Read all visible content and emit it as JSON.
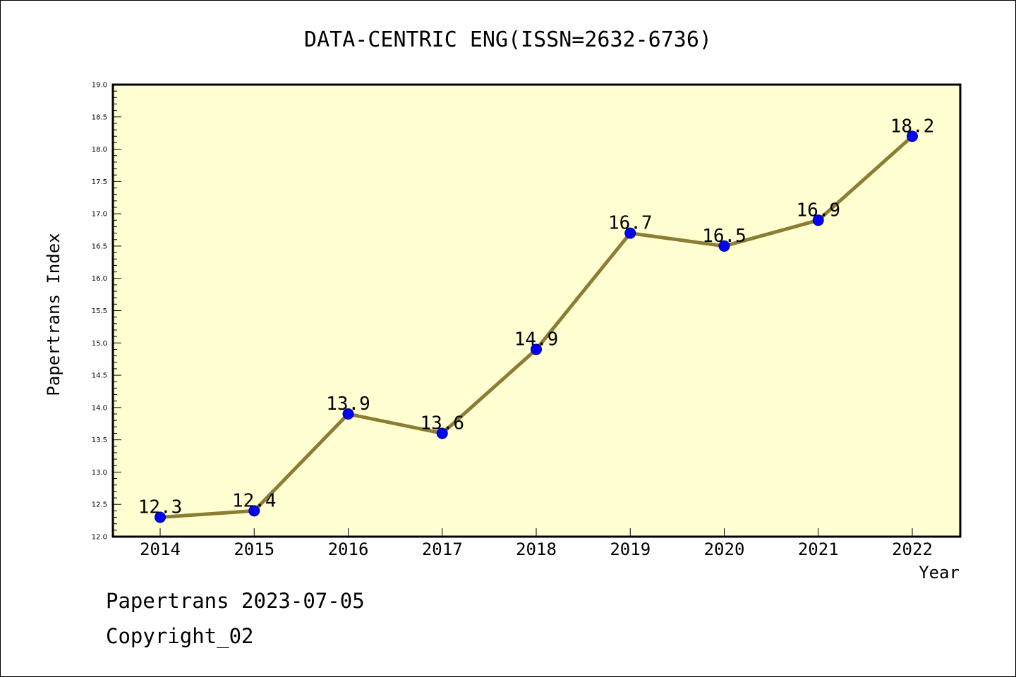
{
  "chart_data": {
    "type": "line",
    "title": "DATA-CENTRIC ENG(ISSN=2632-6736)",
    "xlabel": "Year",
    "ylabel": "Papertrans Index",
    "categories": [
      "2014",
      "2015",
      "2016",
      "2017",
      "2018",
      "2019",
      "2020",
      "2021",
      "2022"
    ],
    "values": [
      12.3,
      12.4,
      13.9,
      13.6,
      14.9,
      16.7,
      16.5,
      16.9,
      18.2
    ],
    "data_labels": [
      "12.3",
      "12.4",
      "13.9",
      "13.6",
      "14.9",
      "16.7",
      "16.5",
      "16.9",
      "18.2"
    ],
    "ylim": [
      12.0,
      19.0
    ],
    "yticks": [
      "12.0",
      "12.5",
      "13.0",
      "13.5",
      "14.0",
      "14.5",
      "15.0",
      "15.5",
      "16.0",
      "16.5",
      "17.0",
      "17.5",
      "18.0",
      "18.5",
      "19.0"
    ],
    "grid": false,
    "colors": {
      "line": "#8b7d33",
      "marker": "#0000ff",
      "plot_background": "#ffffd2"
    }
  },
  "footer": {
    "date_line": "Papertrans 2023-07-05",
    "copyright": "Copyright_02"
  }
}
